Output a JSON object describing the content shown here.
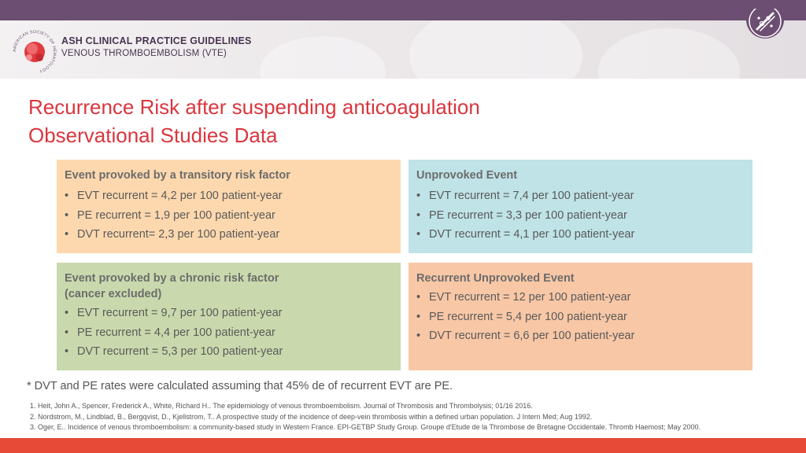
{
  "header": {
    "brand_title": "ASH CLINICAL PRACTICE GUIDELINES",
    "brand_subtitle": "VENOUS THROMBOEMBOLISM (VTE)",
    "logo_ring_text": "AMERICAN SOCIETY OF HEMATOLOGY",
    "logo_icon": "ash-logo-icon",
    "corner_icon": "blood-vessel-icon"
  },
  "title": {
    "line1": "Recurrence Risk after suspending anticoagulation",
    "line2": "Observational Studies Data"
  },
  "boxes": [
    {
      "heading": "Event provoked by a transitory risk factor",
      "items": [
        "EVT recurrent = 4,2 per 100 patient-year",
        "PE recurrent = 1,9 per 100 patient-year",
        "DVT recurrent= 2,3 per 100 patient-year"
      ]
    },
    {
      "heading": "Unprovoked Event",
      "items": [
        "EVT recurrent = 7,4 per 100 patient-year",
        "PE recurrent = 3,3 per 100 patient-year",
        "DVT recurrent = 4,1 per 100 patient-year"
      ]
    },
    {
      "heading": "Event provoked by a chronic risk factor",
      "heading2": "(cancer excluded)",
      "items": [
        "EVT recurrent = 9,7 per 100 patient-year",
        "PE recurrent = 4,4 per 100 patient-year",
        "DVT recurrent = 5,3 per 100 patient-year"
      ]
    },
    {
      "heading": "Recurrent Unprovoked Event",
      "items": [
        "EVT recurrent = 12 per 100 patient-year",
        "PE recurrent = 5,4 per 100 patient-year",
        "DVT recurrent = 6,6 per 100 patient-year"
      ]
    }
  ],
  "bullet_char": "•",
  "footnote": "* DVT and PE rates were calculated assuming that 45% de of recurrent EVT are PE.",
  "references": [
    "1. Heit, John A., Spencer, Frederick A., White, Richard H.. The epidemiology of venous thromboembolism. Journal of Thrombosis and Thrombolysis; 01/16 2016.",
    "2. Nordstrom, M., Lindblad, B., Bergqvist, D., Kjellstrom, T.. A prospective study of the incidence of deep-vein thrombosis within a defined urban population. J Intern Med; Aug 1992.",
    "3. Oger, E.. Incidence of venous thromboembolism: a community-based study in Western France. EPI-GETBP Study Group. Groupe d'Etude de la Thrombose de Bretagne Occidentale. Thromb Haemost; May 2000."
  ],
  "colors": {
    "top_band": "#6b4e71",
    "bottom_band": "#e74a37",
    "title": "#d9363e",
    "box_transitory": "#fdd8ae",
    "box_unprovoked": "#bfe3e6",
    "box_chronic": "#cad9ad",
    "box_recurrent": "#f8c7a6"
  }
}
